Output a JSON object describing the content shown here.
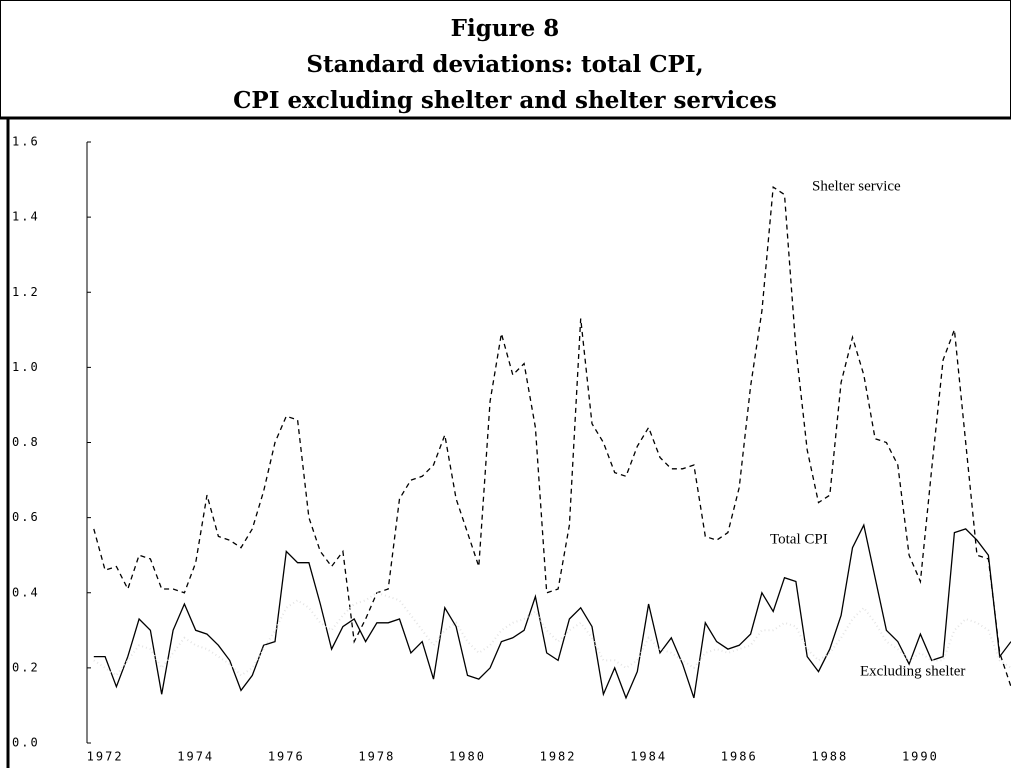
{
  "chart_data": {
    "type": "line",
    "title": [
      "Figure 8",
      "Standard deviations: total CPI,",
      "CPI excluding shelter and shelter services"
    ],
    "x": [
      1971.75,
      1972,
      1972.25,
      1972.5,
      1972.75,
      1973,
      1973.25,
      1973.5,
      1973.75,
      1974,
      1974.25,
      1974.5,
      1974.75,
      1975,
      1975.25,
      1975.5,
      1975.75,
      1976,
      1976.25,
      1976.5,
      1976.75,
      1977,
      1977.25,
      1977.5,
      1977.75,
      1978,
      1978.25,
      1978.5,
      1978.75,
      1979,
      1979.25,
      1979.5,
      1979.75,
      1980,
      1980.25,
      1980.5,
      1980.75,
      1981,
      1981.25,
      1981.5,
      1981.75,
      1982,
      1982.25,
      1982.5,
      1982.75,
      1983,
      1983.25,
      1983.5,
      1983.75,
      1984,
      1984.25,
      1984.5,
      1984.75,
      1985,
      1985.25,
      1985.5,
      1985.75,
      1986,
      1986.25,
      1986.5,
      1986.75,
      1987,
      1987.25,
      1987.5,
      1987.75,
      1988,
      1988.25,
      1988.5,
      1988.75,
      1989,
      1989.25,
      1989.5,
      1989.75,
      1990,
      1990.25,
      1990.5,
      1990.75,
      1991,
      1991.25,
      1991.5,
      1991.75,
      1992
    ],
    "series": [
      {
        "name": "Shelter service",
        "color": "#000000",
        "dash": "5,4",
        "values": [
          0.57,
          0.46,
          0.47,
          0.41,
          0.5,
          0.49,
          0.41,
          0.41,
          0.4,
          0.48,
          0.66,
          0.55,
          0.54,
          0.52,
          0.57,
          0.67,
          0.8,
          0.87,
          0.86,
          0.6,
          0.51,
          0.47,
          0.51,
          0.27,
          0.33,
          0.4,
          0.41,
          0.65,
          0.7,
          0.71,
          0.74,
          0.82,
          0.65,
          0.56,
          0.47,
          0.91,
          1.09,
          0.98,
          1.01,
          0.84,
          0.4,
          0.41,
          0.58,
          1.13,
          0.85,
          0.8,
          0.72,
          0.71,
          0.79,
          0.84,
          0.76,
          0.73,
          0.73,
          0.74,
          0.55,
          0.54,
          0.56,
          0.68,
          0.95,
          1.15,
          1.48,
          1.46,
          1.05,
          0.78,
          0.64,
          0.66,
          0.96,
          1.08,
          0.98,
          0.81,
          0.8,
          0.74,
          0.5,
          0.43,
          0.73,
          1.02,
          1.1,
          0.8,
          0.5,
          0.49,
          0.24,
          0.15
        ]
      },
      {
        "name": "Total CPI",
        "color": "#000000",
        "dash": "none",
        "values": [
          0.23,
          0.23,
          0.15,
          0.23,
          0.33,
          0.3,
          0.13,
          0.3,
          0.37,
          0.3,
          0.29,
          0.26,
          0.22,
          0.14,
          0.18,
          0.26,
          0.27,
          0.51,
          0.48,
          0.48,
          0.37,
          0.25,
          0.31,
          0.33,
          0.27,
          0.32,
          0.32,
          0.33,
          0.24,
          0.27,
          0.17,
          0.36,
          0.31,
          0.18,
          0.17,
          0.2,
          0.27,
          0.28,
          0.3,
          0.39,
          0.24,
          0.22,
          0.33,
          0.36,
          0.31,
          0.13,
          0.2,
          0.12,
          0.19,
          0.37,
          0.24,
          0.28,
          0.21,
          0.12,
          0.32,
          0.27,
          0.25,
          0.26,
          0.29,
          0.4,
          0.35,
          0.44,
          0.43,
          0.23,
          0.19,
          0.25,
          0.34,
          0.52,
          0.58,
          0.44,
          0.3,
          0.27,
          0.21,
          0.29,
          0.22,
          0.23,
          0.56,
          0.57,
          0.54,
          0.5,
          0.23,
          0.27
        ]
      },
      {
        "name": "Excluding shelter",
        "color": "#e4e4e4",
        "dash": "1,3",
        "values": [
          0.22,
          0.2,
          0.18,
          0.22,
          0.26,
          0.25,
          0.2,
          0.24,
          0.28,
          0.26,
          0.25,
          0.23,
          0.21,
          0.18,
          0.2,
          0.25,
          0.3,
          0.36,
          0.38,
          0.36,
          0.32,
          0.3,
          0.34,
          0.37,
          0.38,
          0.4,
          0.39,
          0.38,
          0.34,
          0.3,
          0.26,
          0.3,
          0.32,
          0.27,
          0.24,
          0.26,
          0.3,
          0.32,
          0.33,
          0.35,
          0.3,
          0.27,
          0.3,
          0.32,
          0.28,
          0.22,
          0.22,
          0.2,
          0.22,
          0.28,
          0.25,
          0.24,
          0.22,
          0.2,
          0.24,
          0.25,
          0.24,
          0.25,
          0.26,
          0.3,
          0.3,
          0.32,
          0.31,
          0.25,
          0.22,
          0.24,
          0.28,
          0.33,
          0.36,
          0.32,
          0.27,
          0.25,
          0.22,
          0.24,
          0.22,
          0.22,
          0.3,
          0.33,
          0.32,
          0.3,
          0.22,
          0.2
        ]
      }
    ],
    "xlim": [
      1971.6,
      1992.0
    ],
    "xticks": [
      1972,
      1974,
      1976,
      1978,
      1980,
      1982,
      1984,
      1986,
      1988,
      1990
    ],
    "ylim": [
      0,
      1.6
    ],
    "yticks": [
      {
        "value": 0,
        "label": "0.0"
      },
      0.2,
      0.4,
      0.6,
      0.8,
      {
        "value": 1,
        "label": "1.0"
      },
      1.2,
      1.4,
      1.6
    ],
    "grid": false
  }
}
